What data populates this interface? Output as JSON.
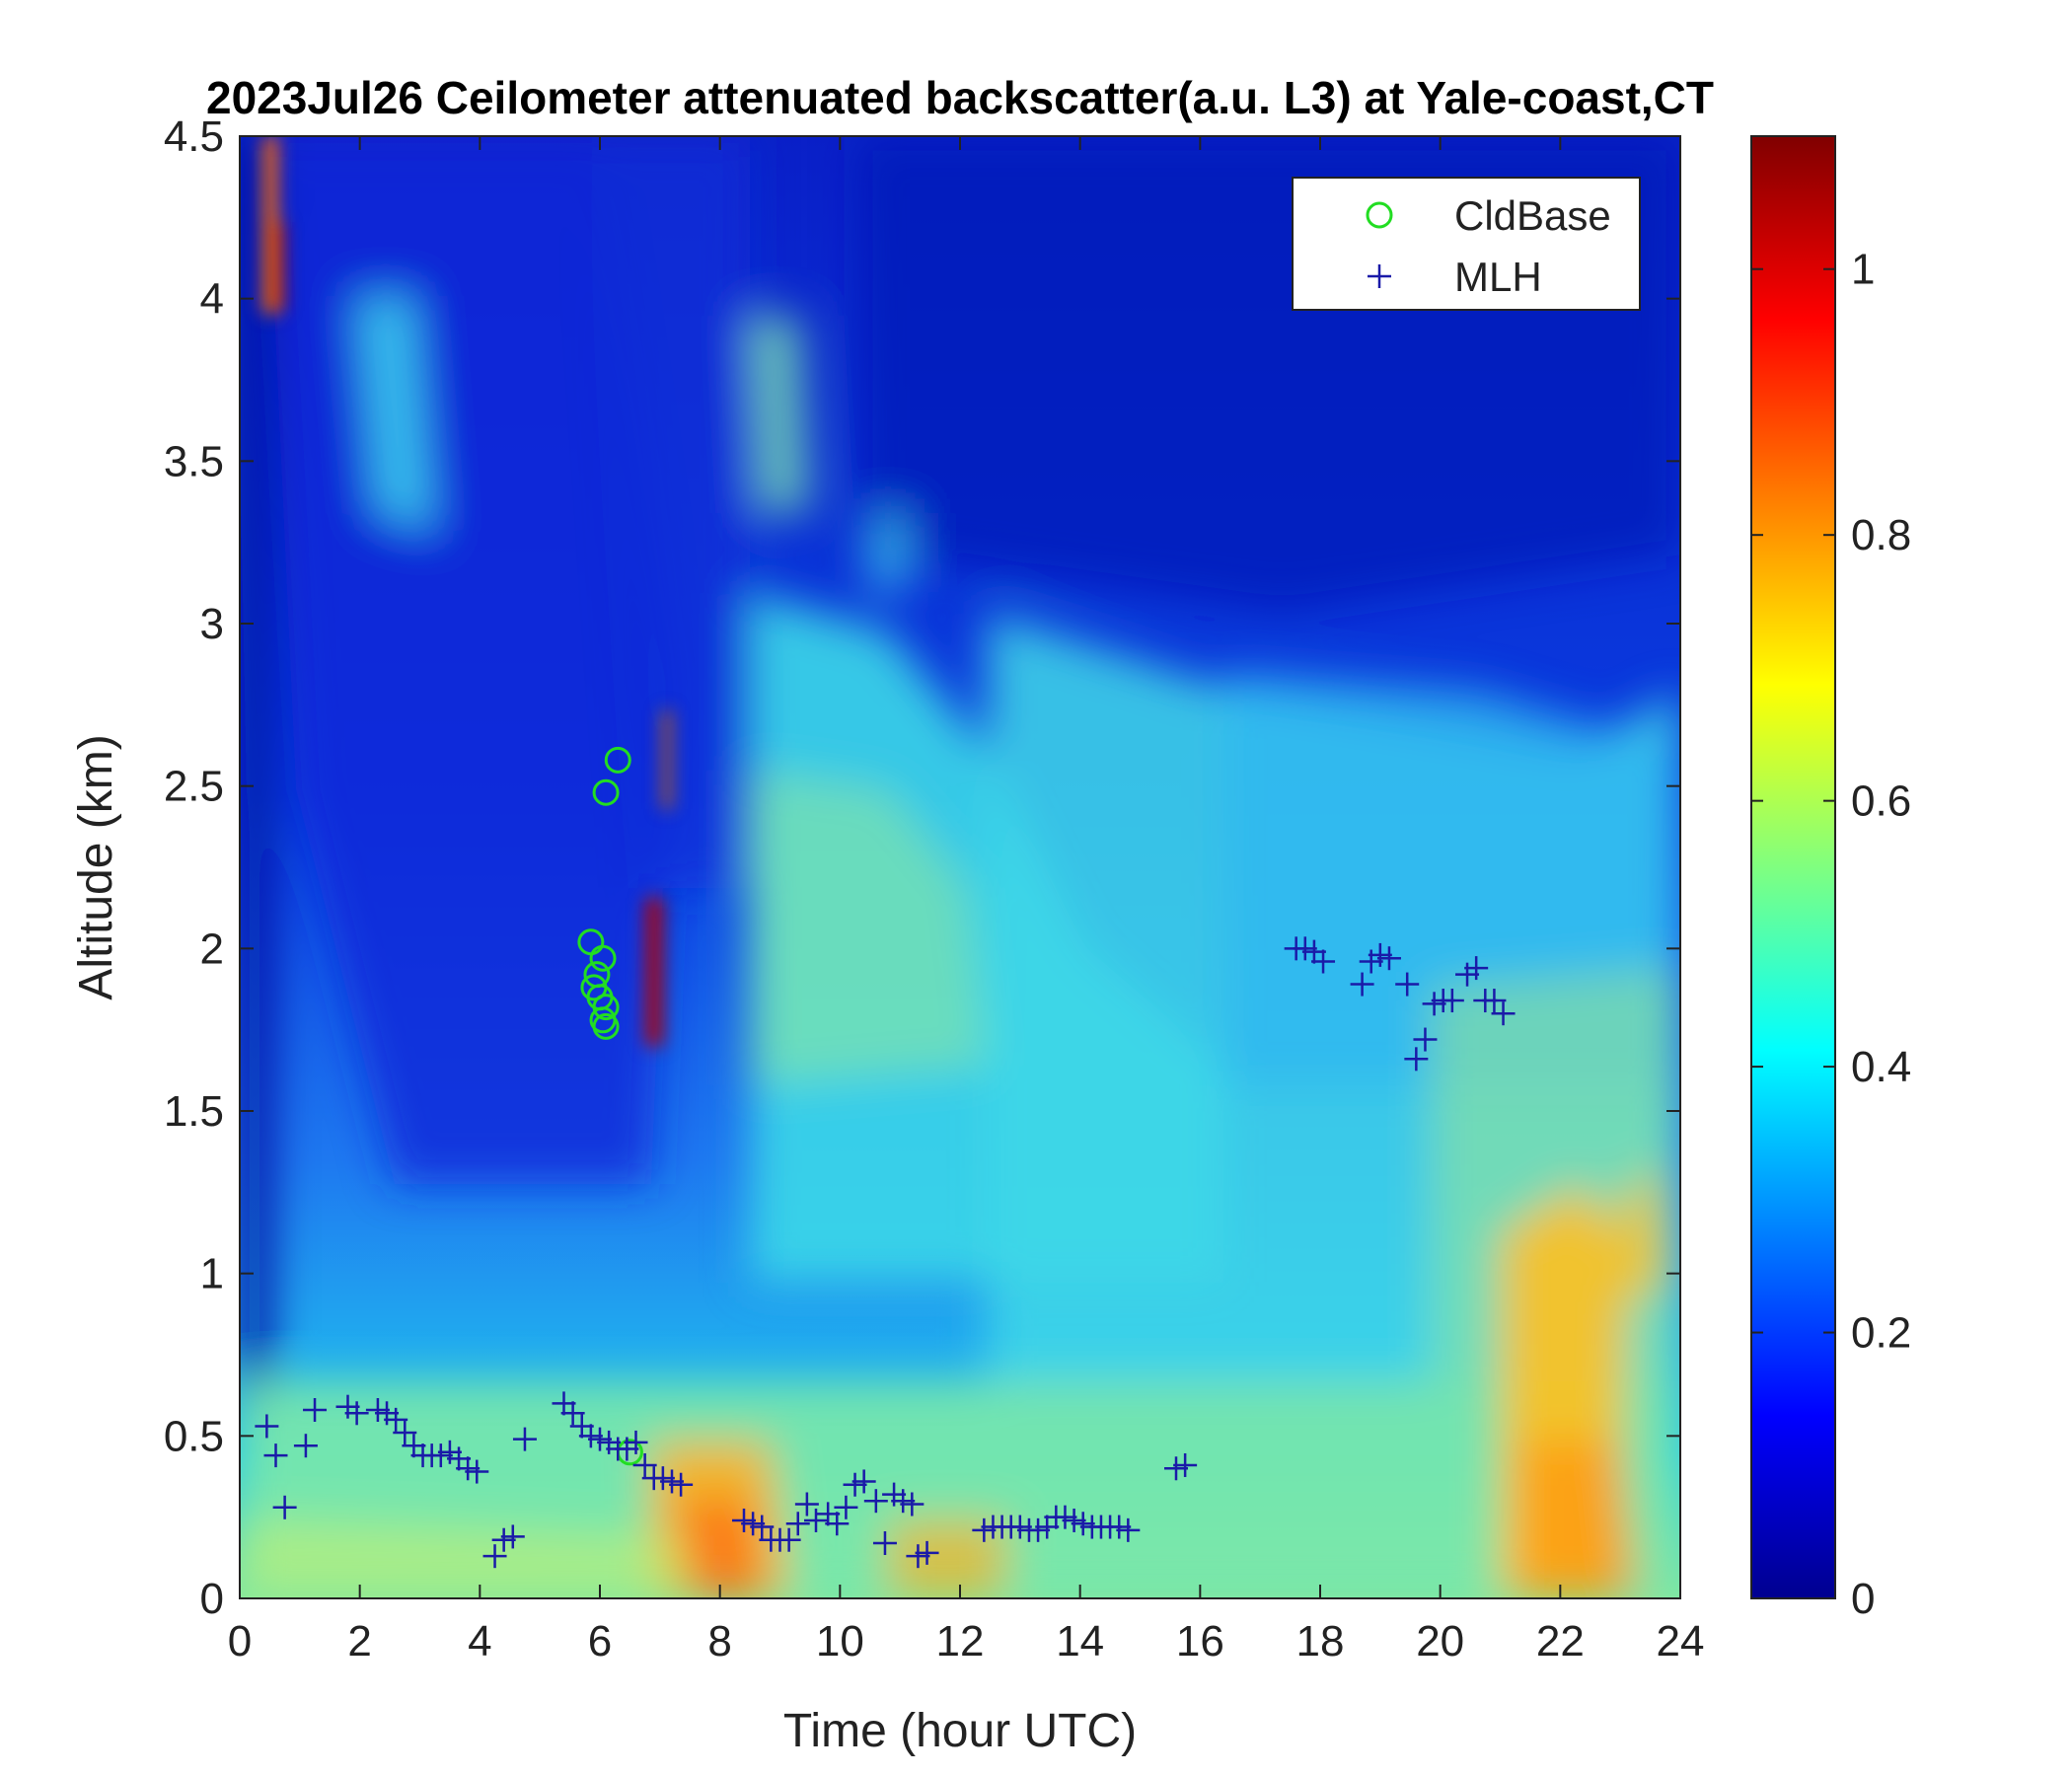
{
  "chart_data": {
    "type": "heatmap",
    "title": "2023Jul26 Ceilometer attenuated backscatter(a.u. L3) at Yale-coast,CT",
    "xlabel": "Time (hour UTC)",
    "ylabel": "Altitude (km)",
    "xlim": [
      0,
      24
    ],
    "ylim": [
      0,
      4.5
    ],
    "x_ticks": [
      "0",
      "2",
      "4",
      "6",
      "8",
      "10",
      "12",
      "14",
      "16",
      "18",
      "20",
      "22",
      "24"
    ],
    "y_ticks": [
      "0",
      "0.5",
      "1",
      "1.5",
      "2",
      "2.5",
      "3",
      "3.5",
      "4",
      "4.5"
    ],
    "colorbar": {
      "colormap": "jet",
      "range": [
        0,
        1.1
      ],
      "ticks": [
        "0",
        "0.2",
        "0.4",
        "0.6",
        "0.8",
        "1"
      ]
    },
    "legend": {
      "position": "top-right",
      "entries": [
        "CldBase",
        "MLH"
      ]
    },
    "colors": {
      "cldbase": "#22dd22",
      "mlh": "#1a1aa8"
    },
    "series": [
      {
        "name": "CldBase",
        "marker": "circle",
        "points": [
          [
            6.3,
            2.58
          ],
          [
            6.1,
            2.48
          ],
          [
            5.85,
            2.02
          ],
          [
            5.95,
            1.92
          ],
          [
            6.05,
            1.97
          ],
          [
            5.9,
            1.88
          ],
          [
            6.0,
            1.85
          ],
          [
            6.1,
            1.82
          ],
          [
            6.05,
            1.78
          ],
          [
            6.1,
            1.76
          ],
          [
            6.5,
            0.45
          ]
        ]
      },
      {
        "name": "MLH",
        "marker": "plus",
        "points": [
          [
            0.45,
            0.53
          ],
          [
            0.6,
            0.44
          ],
          [
            0.75,
            0.28
          ],
          [
            1.1,
            0.47
          ],
          [
            1.25,
            0.58
          ],
          [
            1.8,
            0.59
          ],
          [
            1.95,
            0.57
          ],
          [
            2.3,
            0.58
          ],
          [
            2.45,
            0.57
          ],
          [
            2.6,
            0.55
          ],
          [
            2.75,
            0.51
          ],
          [
            2.9,
            0.47
          ],
          [
            3.05,
            0.44
          ],
          [
            3.2,
            0.44
          ],
          [
            3.35,
            0.44
          ],
          [
            3.5,
            0.45
          ],
          [
            3.65,
            0.43
          ],
          [
            3.8,
            0.4
          ],
          [
            3.95,
            0.39
          ],
          [
            4.25,
            0.13
          ],
          [
            4.4,
            0.18
          ],
          [
            4.55,
            0.19
          ],
          [
            4.75,
            0.49
          ],
          [
            5.4,
            0.6
          ],
          [
            5.55,
            0.57
          ],
          [
            5.7,
            0.53
          ],
          [
            5.85,
            0.5
          ],
          [
            6.0,
            0.49
          ],
          [
            6.15,
            0.48
          ],
          [
            6.3,
            0.46
          ],
          [
            6.45,
            0.46
          ],
          [
            6.6,
            0.48
          ],
          [
            6.75,
            0.41
          ],
          [
            6.9,
            0.37
          ],
          [
            7.05,
            0.37
          ],
          [
            7.2,
            0.36
          ],
          [
            7.35,
            0.35
          ],
          [
            8.4,
            0.24
          ],
          [
            8.55,
            0.23
          ],
          [
            8.7,
            0.22
          ],
          [
            8.85,
            0.18
          ],
          [
            9.0,
            0.18
          ],
          [
            9.15,
            0.18
          ],
          [
            9.3,
            0.23
          ],
          [
            9.45,
            0.29
          ],
          [
            9.6,
            0.24
          ],
          [
            9.8,
            0.26
          ],
          [
            9.95,
            0.23
          ],
          [
            10.1,
            0.28
          ],
          [
            10.25,
            0.35
          ],
          [
            10.4,
            0.36
          ],
          [
            10.6,
            0.3
          ],
          [
            10.75,
            0.17
          ],
          [
            10.9,
            0.32
          ],
          [
            11.05,
            0.3
          ],
          [
            11.2,
            0.29
          ],
          [
            11.3,
            0.13
          ],
          [
            11.45,
            0.14
          ],
          [
            12.4,
            0.21
          ],
          [
            12.55,
            0.22
          ],
          [
            12.7,
            0.22
          ],
          [
            12.85,
            0.22
          ],
          [
            13.0,
            0.22
          ],
          [
            13.15,
            0.21
          ],
          [
            13.3,
            0.21
          ],
          [
            13.45,
            0.22
          ],
          [
            13.6,
            0.25
          ],
          [
            13.75,
            0.25
          ],
          [
            13.9,
            0.24
          ],
          [
            14.05,
            0.23
          ],
          [
            14.2,
            0.22
          ],
          [
            14.35,
            0.22
          ],
          [
            14.5,
            0.22
          ],
          [
            14.65,
            0.22
          ],
          [
            14.8,
            0.21
          ],
          [
            15.6,
            0.4
          ],
          [
            15.75,
            0.41
          ],
          [
            17.6,
            2.0
          ],
          [
            17.75,
            2.0
          ],
          [
            17.9,
            1.99
          ],
          [
            18.05,
            1.96
          ],
          [
            18.7,
            1.89
          ],
          [
            18.85,
            1.96
          ],
          [
            19.0,
            1.98
          ],
          [
            19.15,
            1.97
          ],
          [
            19.45,
            1.89
          ],
          [
            19.6,
            1.66
          ],
          [
            19.75,
            1.72
          ],
          [
            19.9,
            1.83
          ],
          [
            20.05,
            1.84
          ],
          [
            20.2,
            1.84
          ],
          [
            20.45,
            1.92
          ],
          [
            20.6,
            1.94
          ],
          [
            20.75,
            1.84
          ],
          [
            20.9,
            1.84
          ],
          [
            21.05,
            1.8
          ]
        ]
      }
    ]
  }
}
